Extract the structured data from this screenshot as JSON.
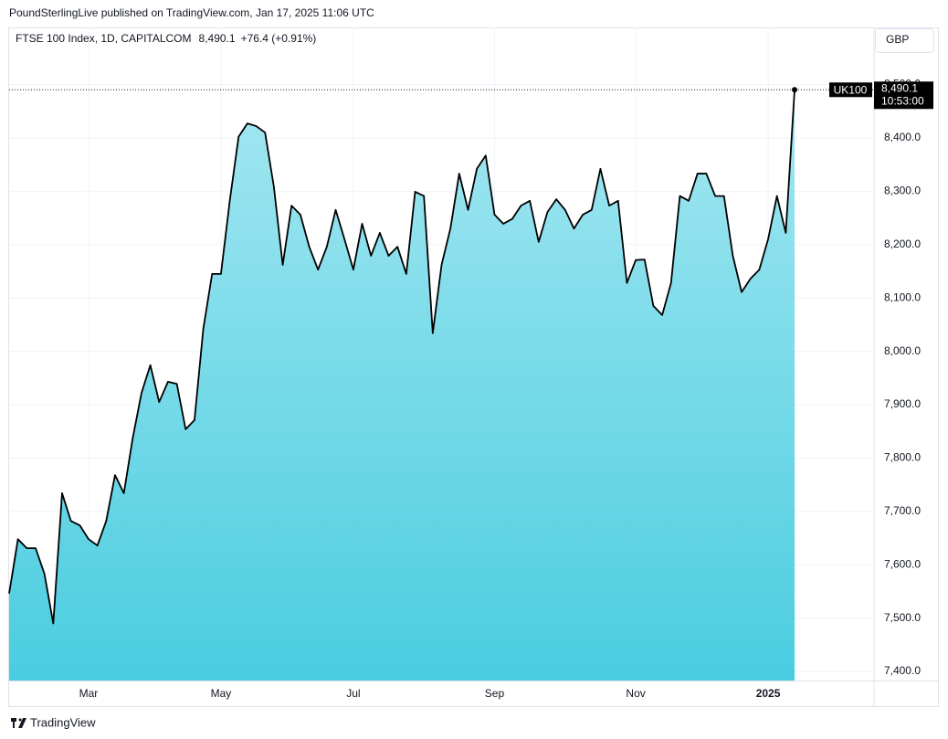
{
  "header": "PoundSterlingLive published on TradingView.com, Jan 17, 2025 11:06 UTC",
  "footer": "TradingView",
  "chart_data": {
    "type": "area",
    "title": "FTSE 100 Index, 1D, CAPITALCOM",
    "price_label": "8,490.1",
    "change": "+76.4 (+0.91%)",
    "currency": "GBP",
    "symbol": "UK100",
    "countdown": "10:53:00",
    "color": "#000000",
    "fill_top": "#a3e7f1",
    "fill_bottom": "#4acde0",
    "grid": true,
    "categories": [
      null,
      null,
      null,
      null,
      null,
      null,
      null,
      null,
      null,
      "Mar",
      null,
      null,
      null,
      null,
      null,
      null,
      null,
      null,
      null,
      null,
      null,
      null,
      null,
      null,
      "May",
      null,
      null,
      null,
      null,
      null,
      null,
      null,
      null,
      null,
      null,
      null,
      null,
      null,
      null,
      "Jul",
      null,
      null,
      null,
      null,
      null,
      null,
      null,
      null,
      null,
      null,
      null,
      null,
      null,
      null,
      null,
      "Sep",
      null,
      null,
      null,
      null,
      null,
      null,
      null,
      null,
      null,
      null,
      null,
      null,
      null,
      null,
      null,
      "Nov",
      null,
      null,
      null,
      null,
      null,
      null,
      null,
      null,
      null,
      null,
      null,
      null,
      null,
      null,
      "2025",
      null,
      null,
      null,
      null,
      null,
      null,
      null,
      null,
      null,
      null,
      null,
      null
    ],
    "values": [
      7546,
      7648,
      7631,
      7631,
      7583,
      7490,
      7734,
      7682,
      7674,
      7648,
      7636,
      7682,
      7768,
      7734,
      7837,
      7922,
      7974,
      7905,
      7943,
      7939,
      7854,
      7871,
      8042,
      8145,
      8145,
      8282,
      8402,
      8427,
      8422,
      8410,
      8308,
      8162,
      8273,
      8256,
      8196,
      8153,
      8196,
      8265,
      8210,
      8153,
      8239,
      8179,
      8222,
      8179,
      8196,
      8145,
      8299,
      8291,
      8034,
      8162,
      8230,
      8333,
      8265,
      8342,
      8367,
      8256,
      8239,
      8248,
      8273,
      8282,
      8205,
      8261,
      8285,
      8265,
      8230,
      8256,
      8265,
      8342,
      8273,
      8282,
      8128,
      8171,
      8172,
      8085,
      8068,
      8128,
      8291,
      8282,
      8333,
      8333,
      8291,
      8291,
      8179,
      8111,
      8136,
      8153,
      8210,
      8291,
      8222,
      8490.1,
      null,
      null,
      null,
      null,
      null,
      null,
      null,
      null,
      null
    ],
    "ylim": [
      7383,
      8607
    ],
    "yticks": [
      {
        "value": 7400,
        "label": "7,400.0"
      },
      {
        "value": 7500,
        "label": "7,500.0"
      },
      {
        "value": 7600,
        "label": "7,600.0"
      },
      {
        "value": 7700,
        "label": "7,700.0"
      },
      {
        "value": 7800,
        "label": "7,800.0"
      },
      {
        "value": 7900,
        "label": "7,900.0"
      },
      {
        "value": 8000,
        "label": "8,000.0"
      },
      {
        "value": 8100,
        "label": "8,100.0"
      },
      {
        "value": 8200,
        "label": "8,200.0"
      },
      {
        "value": 8300,
        "label": "8,300.0"
      },
      {
        "value": 8400,
        "label": "8,400.0"
      },
      {
        "value": 8500,
        "label": "8,500.0"
      }
    ]
  }
}
